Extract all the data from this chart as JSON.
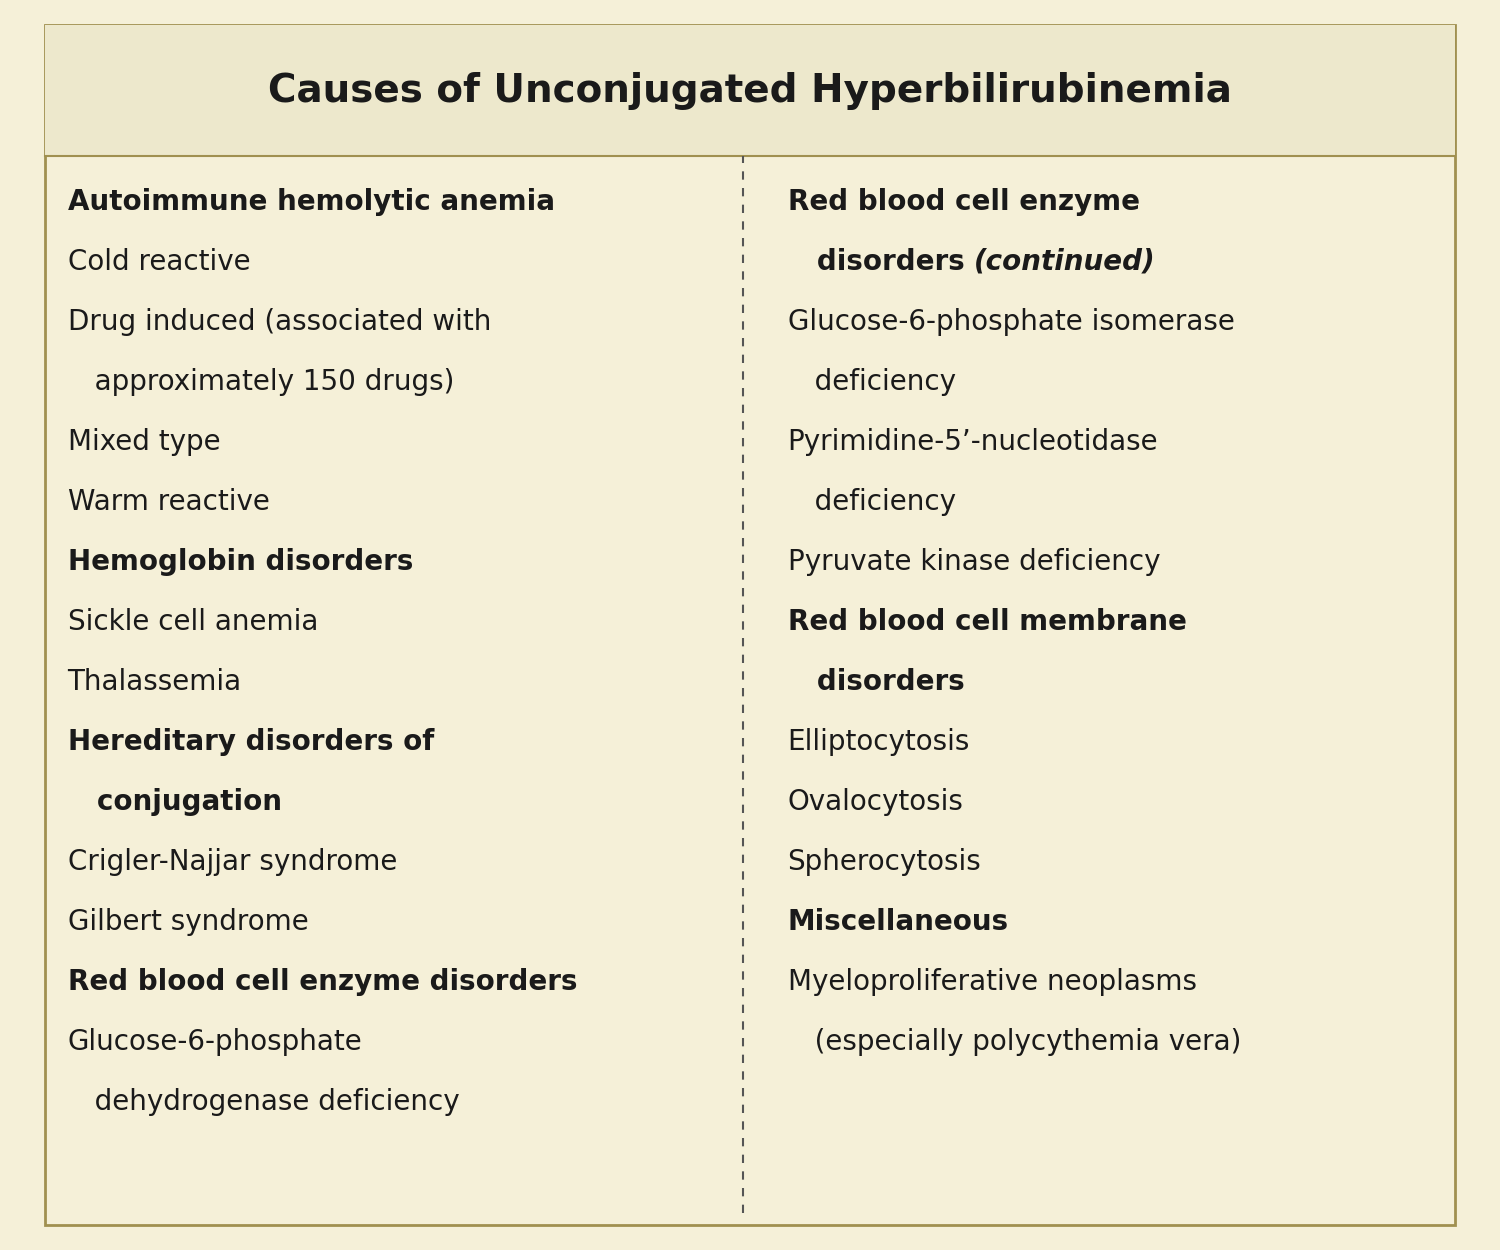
{
  "title": "Causes of Unconjugated Hyperbilirubinemia",
  "background_color": "#f5f0d8",
  "title_bg_color": "#ede8cc",
  "text_color": "#1a1a1a",
  "border_color": "#a09050",
  "divider_color": "#555555",
  "left_column": [
    {
      "text": "Autoimmune hemolytic anemia",
      "bold": true,
      "multiline": false
    },
    {
      "text": "Cold reactive",
      "bold": false,
      "multiline": false
    },
    {
      "text": "Drug induced (associated with",
      "bold": false,
      "multiline": false
    },
    {
      "text": "   approximately 150 drugs)",
      "bold": false,
      "multiline": false,
      "continuation": true
    },
    {
      "text": "Mixed type",
      "bold": false,
      "multiline": false
    },
    {
      "text": "Warm reactive",
      "bold": false,
      "multiline": false
    },
    {
      "text": "Hemoglobin disorders",
      "bold": true,
      "multiline": false
    },
    {
      "text": "Sickle cell anemia",
      "bold": false,
      "multiline": false
    },
    {
      "text": "Thalassemia",
      "bold": false,
      "multiline": false
    },
    {
      "text": "Hereditary disorders of",
      "bold": true,
      "multiline": false
    },
    {
      "text": "   conjugation",
      "bold": true,
      "multiline": false,
      "continuation": true
    },
    {
      "text": "Crigler-Najjar syndrome",
      "bold": false,
      "multiline": false
    },
    {
      "text": "Gilbert syndrome",
      "bold": false,
      "multiline": false
    },
    {
      "text": "Red blood cell enzyme disorders",
      "bold": true,
      "multiline": false
    },
    {
      "text": "Glucose-6-phosphate",
      "bold": false,
      "multiline": false
    },
    {
      "text": "   dehydrogenase deficiency",
      "bold": false,
      "multiline": false,
      "continuation": true
    }
  ],
  "right_column": [
    {
      "text": "Red blood cell enzyme",
      "bold": true,
      "multiline": false
    },
    {
      "text": "   disorders ",
      "bold": true,
      "italic_suffix": "(continued)",
      "multiline": false,
      "continuation": true
    },
    {
      "text": "Glucose-6-phosphate isomerase",
      "bold": false,
      "multiline": false
    },
    {
      "text": "   deficiency",
      "bold": false,
      "multiline": false,
      "continuation": true
    },
    {
      "text": "Pyrimidine-5’-nucleotidase",
      "bold": false,
      "multiline": false
    },
    {
      "text": "   deficiency",
      "bold": false,
      "multiline": false,
      "continuation": true
    },
    {
      "text": "Pyruvate kinase deficiency",
      "bold": false,
      "multiline": false
    },
    {
      "text": "Red blood cell membrane",
      "bold": true,
      "multiline": false
    },
    {
      "text": "   disorders",
      "bold": true,
      "multiline": false,
      "continuation": true
    },
    {
      "text": "Elliptocytosis",
      "bold": false,
      "multiline": false
    },
    {
      "text": "Ovalocytosis",
      "bold": false,
      "multiline": false
    },
    {
      "text": "Spherocytosis",
      "bold": false,
      "multiline": false
    },
    {
      "text": "Miscellaneous",
      "bold": true,
      "multiline": false
    },
    {
      "text": "Myeloproliferative neoplasms",
      "bold": false,
      "multiline": false
    },
    {
      "text": "   (especially polycythemia vera)",
      "bold": false,
      "multiline": false,
      "continuation": true
    }
  ],
  "title_fontsize": 28,
  "body_fontsize": 20,
  "fig_width": 15.0,
  "fig_height": 12.5
}
